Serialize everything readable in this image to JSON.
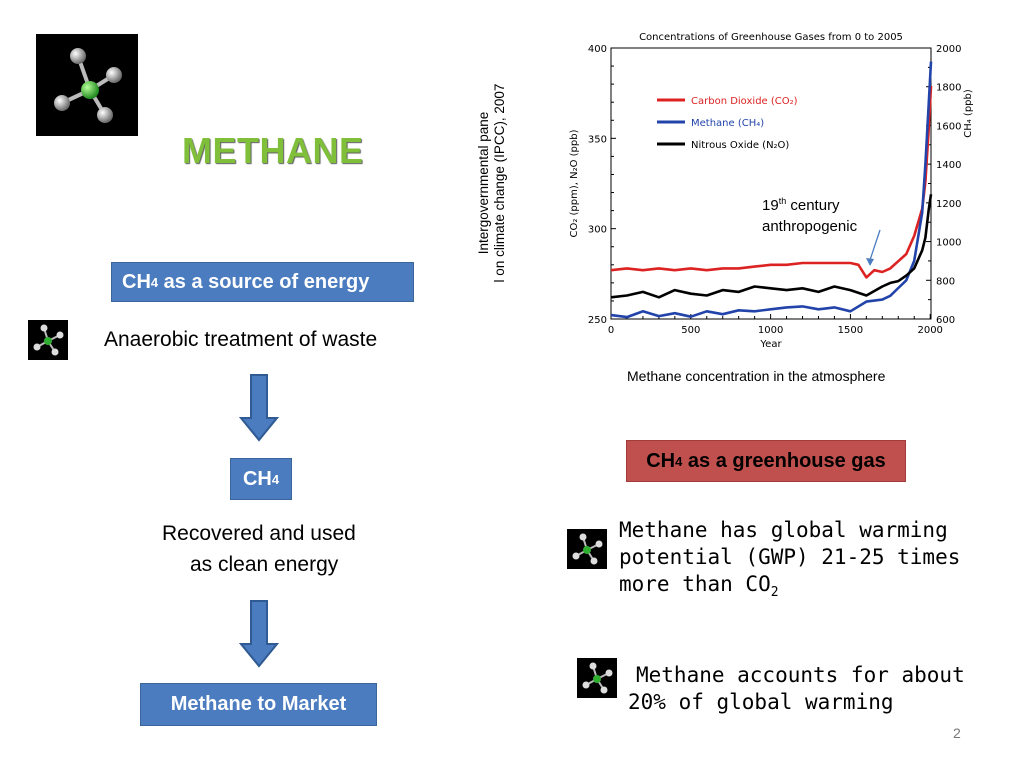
{
  "slide": {
    "title": "METHANE",
    "page_number": "2"
  },
  "left": {
    "source_box": {
      "prefix": "CH",
      "sub": "4",
      "suffix": " as a source of energy"
    },
    "anaerobic": "Anaerobic treatment of waste",
    "ch4_box": {
      "prefix": "CH",
      "sub": "4"
    },
    "recovered_line1": "Recovered and used",
    "recovered_line2": "as clean energy",
    "market_box": "Methane to Market"
  },
  "right": {
    "greenhouse_box": {
      "prefix": "CH",
      "sub": "4",
      "suffix": " as a greenhouse gas"
    },
    "gwp_line1": "Methane has global warming",
    "gwp_line2": "potential (GWP) 21-25 times",
    "gwp_line3_prefix": "more than CO",
    "gwp_line3_sub": "2",
    "accounts_line1": "Methane accounts for about",
    "accounts_line2": "20% of global warming",
    "caption": "Methane concentration in the atmosphere",
    "side_credit_line1": "Intergovernmental pane",
    "side_credit_line2": "l on climate change (IPCC), 2007",
    "annotation_line1_num": "19",
    "annotation_line1_sup": "th",
    "annotation_line1_rest": " century",
    "annotation_line2": "anthropogenic"
  },
  "icons": {
    "molecule": "methane-molecule-icon",
    "arrow": "down-arrow-icon"
  },
  "colors": {
    "title_green": "#7fbf3a",
    "blue_box": "#4a7cbf",
    "red_box": "#c0504d",
    "co2": "#dd2222",
    "ch4": "#2244aa",
    "n2o": "#000000"
  },
  "chart_data": {
    "type": "line",
    "title": "Concentrations of Greenhouse Gases from 0 to 2005",
    "xlabel": "Year",
    "ylabel": "CO₂ (ppm), N₂O (ppb)",
    "y2label": "CH₄ (ppb)",
    "xlim": [
      0,
      2005
    ],
    "ylim": [
      250,
      400
    ],
    "y2lim": [
      600,
      2000
    ],
    "xticks": [
      "0",
      "500",
      "1000",
      "1500",
      "2000"
    ],
    "yticks": [
      "250",
      "300",
      "350",
      "400"
    ],
    "y2ticks": [
      "600",
      "800",
      "1000",
      "1200",
      "1400",
      "1600",
      "1800",
      "2000"
    ],
    "legend_position": "top-left",
    "series": [
      {
        "name": "Carbon Dioxide (CO₂)",
        "axis": "left",
        "x": [
          0,
          100,
          200,
          300,
          400,
          500,
          600,
          700,
          800,
          900,
          1000,
          1100,
          1200,
          1300,
          1400,
          1500,
          1550,
          1600,
          1650,
          1700,
          1750,
          1800,
          1850,
          1900,
          1950,
          1970,
          1990,
          2005
        ],
        "values": [
          277,
          278,
          277,
          278,
          277,
          278,
          277,
          278,
          278,
          279,
          280,
          280,
          281,
          281,
          281,
          281,
          280,
          273,
          277,
          276,
          278,
          282,
          286,
          296,
          311,
          326,
          354,
          379
        ]
      },
      {
        "name": "Methane (CH₄)",
        "axis": "right",
        "x": [
          0,
          100,
          200,
          300,
          400,
          500,
          600,
          700,
          800,
          900,
          1000,
          1100,
          1200,
          1300,
          1400,
          1500,
          1600,
          1700,
          1750,
          1800,
          1850,
          1900,
          1950,
          1970,
          1990,
          2005
        ],
        "values": [
          620,
          610,
          640,
          615,
          630,
          612,
          640,
          625,
          645,
          640,
          650,
          660,
          665,
          650,
          660,
          640,
          690,
          700,
          720,
          760,
          800,
          900,
          1150,
          1400,
          1700,
          1930
        ]
      },
      {
        "name": "Nitrous Oxide (N₂O)",
        "axis": "left",
        "x": [
          0,
          100,
          200,
          300,
          400,
          500,
          600,
          700,
          800,
          900,
          1000,
          1100,
          1200,
          1300,
          1400,
          1500,
          1600,
          1700,
          1750,
          1800,
          1850,
          1900,
          1950,
          1970,
          1990,
          2005
        ],
        "values": [
          262,
          263,
          265,
          262,
          266,
          264,
          263,
          266,
          265,
          268,
          267,
          266,
          267,
          265,
          268,
          266,
          263,
          268,
          270,
          271,
          274,
          278,
          288,
          295,
          310,
          319
        ]
      }
    ]
  }
}
